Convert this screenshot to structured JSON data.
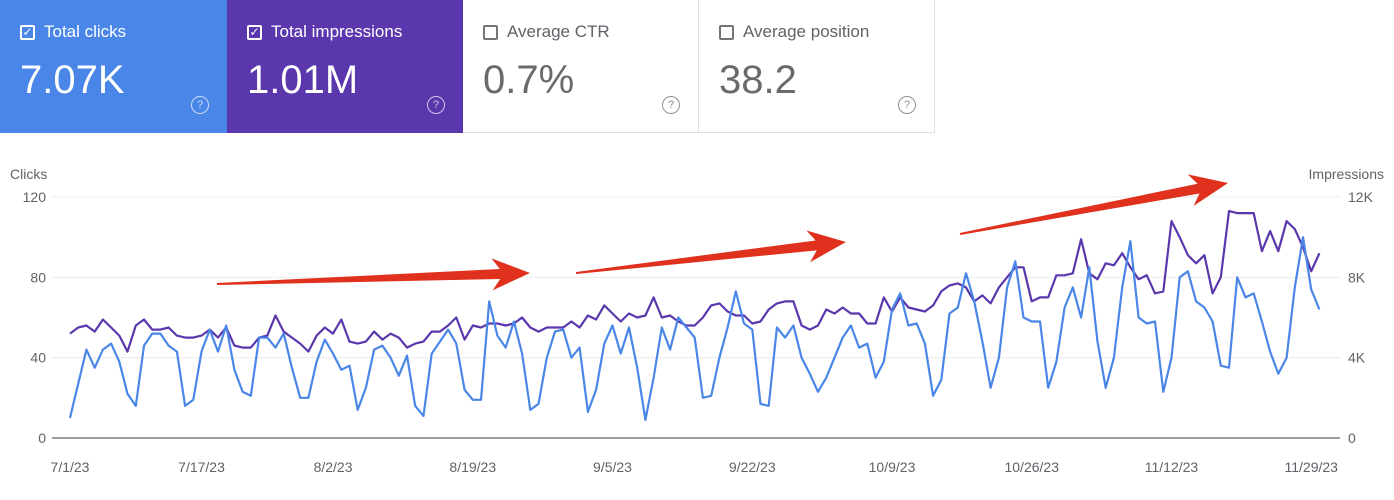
{
  "cards": [
    {
      "label": "Total clicks",
      "value": "7.07K",
      "checked": true,
      "help": "?"
    },
    {
      "label": "Total impressions",
      "value": "1.01M",
      "checked": true,
      "help": "?"
    },
    {
      "label": "Average CTR",
      "value": "0.7%",
      "checked": false,
      "help": "?"
    },
    {
      "label": "Average position",
      "value": "38.2",
      "checked": false,
      "help": "?"
    }
  ],
  "colors": {
    "clicks": "#4a86e8",
    "impressions": "#5a37ad",
    "arrow": "#e0301e"
  },
  "chart_data": {
    "type": "line",
    "x_start": "7/1/23",
    "x_end": "11/30/23",
    "days": 153,
    "left_axis": {
      "label": "Clicks",
      "ticks": [
        "0",
        "40",
        "80",
        "120"
      ],
      "range": [
        0,
        120
      ]
    },
    "right_axis": {
      "label": "Impressions",
      "ticks": [
        "0",
        "4K",
        "8K",
        "12K"
      ],
      "range": [
        0,
        12000
      ]
    },
    "x_ticks": [
      {
        "label": "7/1/23",
        "day": 0
      },
      {
        "label": "7/17/23",
        "day": 16
      },
      {
        "label": "8/2/23",
        "day": 32
      },
      {
        "label": "8/19/23",
        "day": 49
      },
      {
        "label": "9/5/23",
        "day": 66
      },
      {
        "label": "9/22/23",
        "day": 83
      },
      {
        "label": "10/9/23",
        "day": 100
      },
      {
        "label": "10/26/23",
        "day": 117
      },
      {
        "label": "11/12/23",
        "day": 134
      },
      {
        "label": "11/29/23",
        "day": 151
      }
    ],
    "grid": true,
    "series": [
      {
        "name": "Clicks",
        "axis": "left",
        "values": [
          10,
          27,
          44,
          35,
          44,
          47,
          38,
          22,
          16,
          46,
          52,
          52,
          46,
          43,
          16,
          19,
          43,
          54,
          43,
          56,
          34,
          23,
          21,
          50,
          50,
          45,
          52,
          35,
          20,
          20,
          38,
          49,
          42,
          34,
          36,
          14,
          25,
          44,
          46,
          40,
          31,
          41,
          16,
          11,
          42,
          48,
          54,
          47,
          24,
          19,
          19,
          68,
          51,
          45,
          58,
          42,
          14,
          17,
          40,
          53,
          54,
          40,
          45,
          13,
          24,
          47,
          56,
          42,
          55,
          35,
          9,
          30,
          55,
          44,
          60,
          55,
          50,
          20,
          21,
          40,
          55,
          73,
          57,
          54,
          17,
          16,
          55,
          50,
          56,
          40,
          32,
          23,
          30,
          40,
          50,
          56,
          45,
          47,
          30,
          38,
          64,
          72,
          56,
          57,
          47,
          21,
          29,
          62,
          65,
          82,
          68,
          48,
          25,
          40,
          75,
          88,
          60,
          58,
          58,
          25,
          38,
          65,
          75,
          60,
          85,
          48,
          25,
          40,
          75,
          98,
          60,
          57,
          58,
          23,
          40,
          80,
          83,
          68,
          65,
          58,
          36,
          35,
          80,
          70,
          72,
          58,
          43,
          32,
          40,
          75,
          100,
          74,
          64
        ]
      },
      {
        "name": "Impressions",
        "axis": "right",
        "values": [
          5200,
          5500,
          5600,
          5300,
          5900,
          5500,
          5100,
          4300,
          5600,
          5900,
          5400,
          5400,
          5500,
          5100,
          5000,
          5000,
          5100,
          5400,
          5000,
          5500,
          4600,
          4500,
          4500,
          5000,
          5100,
          6100,
          5300,
          5000,
          4700,
          4300,
          5100,
          5500,
          5200,
          5900,
          4800,
          4700,
          4800,
          5300,
          4900,
          5200,
          5000,
          4500,
          4700,
          4800,
          5300,
          5300,
          5600,
          6000,
          4900,
          5600,
          5500,
          5700,
          5700,
          5600,
          5700,
          6000,
          5500,
          5300,
          5500,
          5500,
          5500,
          5800,
          5500,
          6100,
          5900,
          6600,
          6200,
          5800,
          6200,
          6000,
          6100,
          7000,
          6000,
          6100,
          5800,
          5600,
          5600,
          6000,
          6600,
          6700,
          6300,
          6100,
          6100,
          5700,
          5800,
          6400,
          6700,
          6800,
          6800,
          5600,
          5400,
          5600,
          6400,
          6200,
          6500,
          6200,
          6200,
          5700,
          5700,
          7000,
          6300,
          7000,
          6500,
          6400,
          6300,
          6600,
          7300,
          7600,
          7700,
          7500,
          6800,
          7100,
          6700,
          7500,
          8000,
          8500,
          8500,
          6800,
          7000,
          7000,
          8100,
          8100,
          8200,
          9900,
          8200,
          7900,
          8700,
          8600,
          9200,
          8500,
          7900,
          8100,
          7200,
          7300,
          10800,
          10000,
          9100,
          8700,
          9100,
          7200,
          8000,
          11300,
          11200,
          11200,
          11200,
          9300,
          10300,
          9300,
          10800,
          10400,
          9500,
          8300,
          9200
        ]
      }
    ]
  }
}
